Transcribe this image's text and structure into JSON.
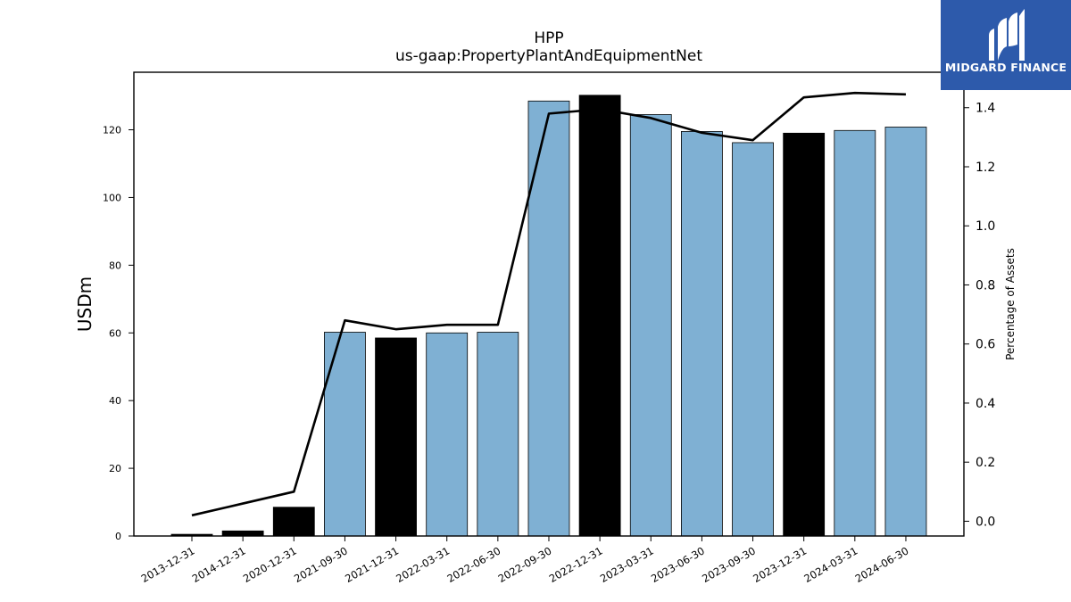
{
  "brand": {
    "name": "MIDGARD FINANCE",
    "bg_color": "#2d5aab"
  },
  "chart_data": {
    "type": "bar",
    "title": "HPP",
    "subtitle": "us-gaap:PropertyPlantAndEquipmentNet",
    "ylabel": "USDm",
    "y2label": "Percentage of Assets",
    "categories": [
      "2013-12-31",
      "2014-12-31",
      "2020-12-31",
      "2021-09-30",
      "2021-12-31",
      "2022-03-31",
      "2022-06-30",
      "2022-09-30",
      "2022-12-31",
      "2023-03-31",
      "2023-06-30",
      "2023-09-30",
      "2023-12-31",
      "2024-03-31",
      "2024-06-30"
    ],
    "values": [
      0.5,
      1.5,
      8.5,
      60.2,
      58.5,
      60.0,
      60.2,
      128.5,
      130.2,
      124.5,
      119.5,
      116.2,
      119.0,
      119.8,
      120.8
    ],
    "bar_colors": [
      "#000000",
      "#000000",
      "#000000",
      "#7fb0d3",
      "#000000",
      "#7fb0d3",
      "#7fb0d3",
      "#7fb0d3",
      "#000000",
      "#7fb0d3",
      "#7fb0d3",
      "#7fb0d3",
      "#000000",
      "#7fb0d3",
      "#7fb0d3"
    ],
    "line": {
      "axis": "right",
      "values": [
        0.02,
        0.06,
        0.1,
        0.68,
        0.65,
        0.665,
        0.665,
        1.38,
        1.395,
        1.365,
        1.315,
        1.29,
        1.435,
        1.45,
        1.445
      ],
      "color": "#000000"
    },
    "yticks": [
      0,
      20,
      40,
      60,
      80,
      100,
      120
    ],
    "ylim": [
      0,
      137
    ],
    "y2ticks": [
      "0.0",
      "0.2",
      "0.4",
      "0.6",
      "0.8",
      "1.0",
      "1.2",
      "1.4"
    ],
    "y2lim": [
      -0.05,
      1.52
    ],
    "grid": false,
    "legend": "none"
  }
}
